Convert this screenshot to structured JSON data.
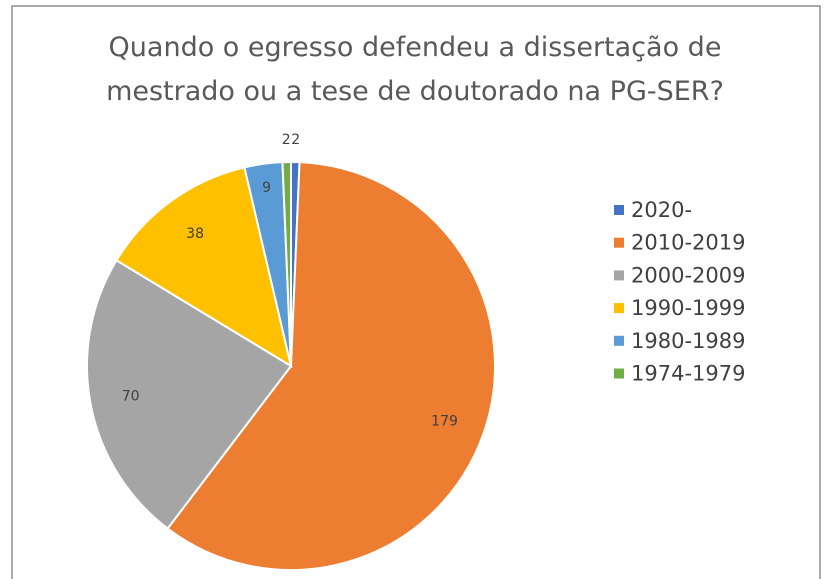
{
  "chart_data": {
    "type": "pie",
    "title": "Quando o egresso defendeu a dissertação de mestrado ou a tese de doutorado na PG-SER?",
    "categories": [
      "2020-",
      "2010-2019",
      "2000-2009",
      "1990-1999",
      "1980-1989",
      "1974-1979"
    ],
    "values": [
      2,
      179,
      70,
      38,
      9,
      2
    ],
    "colors": [
      "#4472c4",
      "#ed7d31",
      "#a5a5a5",
      "#ffc000",
      "#5b9bd5",
      "#70ad47"
    ],
    "legend": "right"
  }
}
